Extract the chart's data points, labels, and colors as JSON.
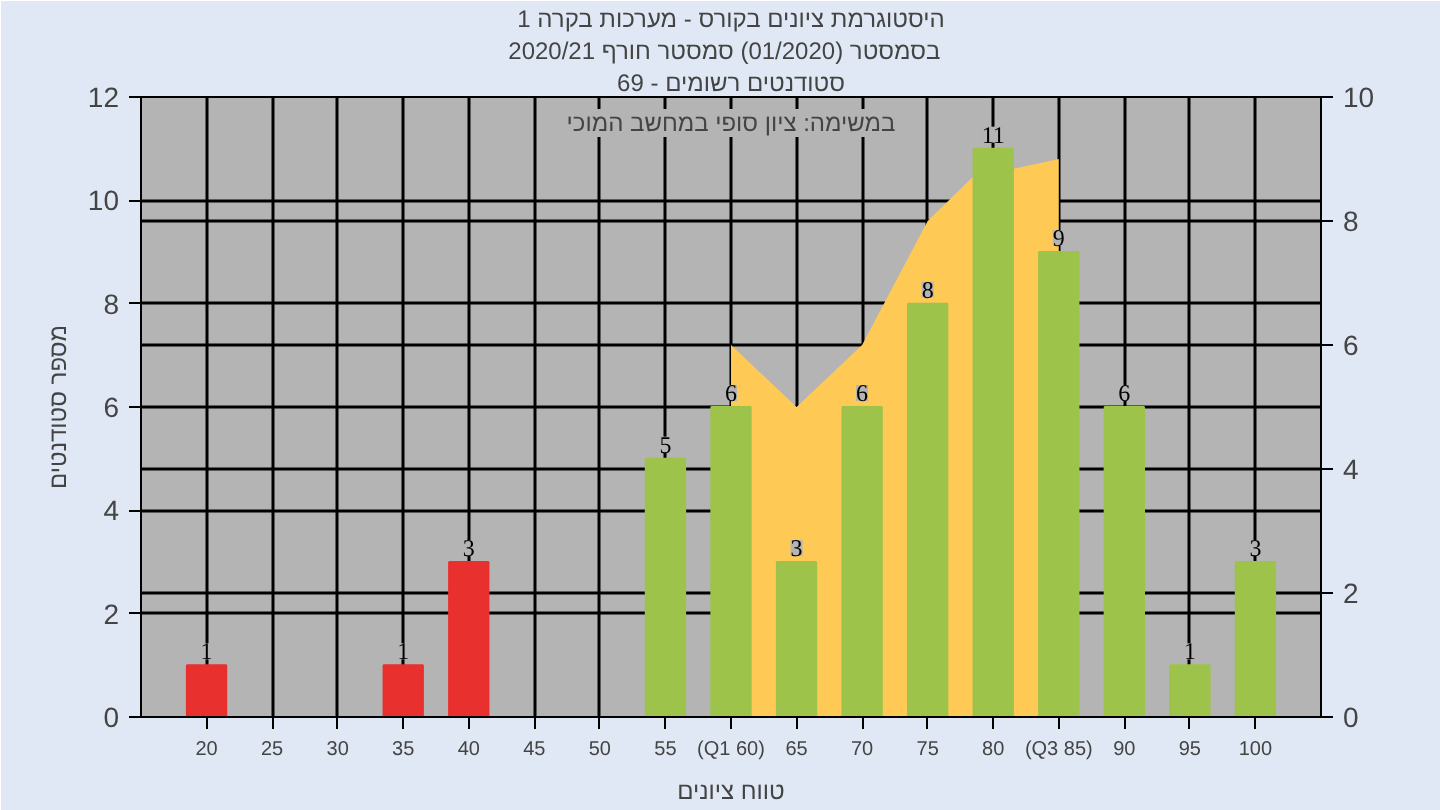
{
  "chart_data": {
    "type": "bar",
    "title": "היסטוגרמת ציונים בקורס - מערכות בקרה 1",
    "subtitle": "בסמסטר  (01/2020)  סמסטר חורף 2020/21",
    "xlabel": "טווח ציונים",
    "ylabel": "מספר סטודנטים",
    "annotations": [
      "סטודנטים רשומים - 69",
      "במשימה: ציון סופי במחשב המוכי"
    ],
    "xlim": [
      15,
      105
    ],
    "xticks": [
      20,
      25,
      30,
      35,
      40,
      45,
      50,
      55,
      {
        "value": 60,
        "label": "(Q1 60)"
      },
      65,
      70,
      75,
      80,
      {
        "value": 85,
        "label": "(Q3 85)"
      },
      90,
      95,
      100
    ],
    "ylim": [
      0,
      12
    ],
    "yticks": [
      0,
      2,
      4,
      6,
      8,
      10,
      12
    ],
    "y2lim": [
      0,
      10
    ],
    "y2ticks": [
      0,
      2,
      4,
      6,
      8,
      10
    ],
    "grid": true,
    "series": [
      {
        "type": "area",
        "axis": "y2",
        "color": "#ffc956",
        "x": [
          60,
          65,
          70,
          75,
          78.4,
          85
        ],
        "values": [
          6,
          5,
          6,
          8,
          8.7,
          9
        ]
      },
      {
        "x": [
          20,
          25,
          30,
          35,
          40,
          45,
          50,
          55,
          60,
          65,
          70,
          75,
          80,
          85,
          90,
          95,
          100
        ],
        "values": [
          1,
          0,
          0,
          1,
          3,
          0,
          0,
          5,
          6,
          3,
          6,
          8,
          11,
          9,
          6,
          1,
          3
        ],
        "value_labels": [
          "1",
          null,
          null,
          "1",
          "3",
          null,
          null,
          "5",
          "6",
          "3",
          "6",
          "8",
          "11",
          "9",
          "6",
          "1",
          "3"
        ],
        "colors": [
          "#e8302f",
          "#e8302f",
          "#e8302f",
          "#e8302f",
          "#e8302f",
          "#e8302f",
          "#e8302f",
          "#9dc34a",
          "#9dc34a",
          "#9dc34a",
          "#9dc34a",
          "#9dc34a",
          "#9dc34a",
          "#9dc34a",
          "#9dc34a",
          "#9dc34a",
          "#9dc34a"
        ]
      }
    ]
  }
}
